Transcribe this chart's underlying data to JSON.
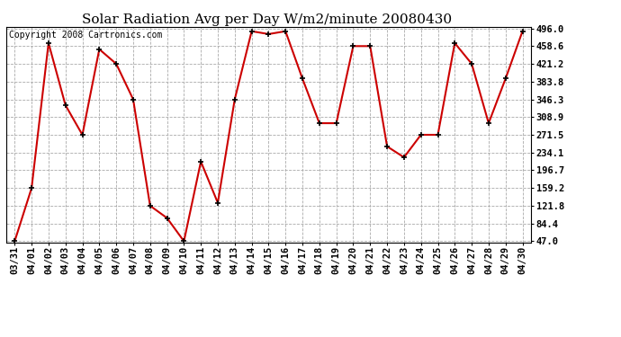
{
  "title": "Solar Radiation Avg per Day W/m2/minute 20080430",
  "copyright": "Copyright 2008 Cartronics.com",
  "dates": [
    "03/31",
    "04/01",
    "04/02",
    "04/03",
    "04/04",
    "04/05",
    "04/06",
    "04/07",
    "04/08",
    "04/09",
    "04/10",
    "04/11",
    "04/12",
    "04/13",
    "04/14",
    "04/15",
    "04/16",
    "04/17",
    "04/18",
    "04/19",
    "04/20",
    "04/21",
    "04/22",
    "04/23",
    "04/24",
    "04/25",
    "04/26",
    "04/27",
    "04/28",
    "04/29",
    "04/30"
  ],
  "values": [
    47.0,
    159.2,
    465.0,
    334.0,
    271.5,
    452.0,
    421.2,
    346.3,
    121.8,
    96.0,
    47.0,
    215.0,
    128.0,
    346.3,
    490.0,
    484.0,
    490.0,
    390.0,
    296.0,
    296.0,
    458.6,
    458.6,
    247.0,
    224.0,
    271.5,
    271.5,
    465.0,
    421.2,
    296.0,
    390.0,
    490.0
  ],
  "line_color": "#cc0000",
  "marker_color": "#000000",
  "bg_color": "#ffffff",
  "plot_bg_color": "#ffffff",
  "grid_color": "#aaaaaa",
  "ytick_labels": [
    "47.0",
    "84.4",
    "121.8",
    "159.2",
    "196.7",
    "234.1",
    "271.5",
    "308.9",
    "346.3",
    "383.8",
    "421.2",
    "458.6",
    "496.0"
  ],
  "ytick_values": [
    47.0,
    84.4,
    121.8,
    159.2,
    196.7,
    234.1,
    271.5,
    308.9,
    346.3,
    383.8,
    421.2,
    458.6,
    496.0
  ],
  "ymin": 47.0,
  "ymax": 496.0,
  "title_fontsize": 11,
  "copyright_fontsize": 7,
  "tick_fontsize": 7.5
}
